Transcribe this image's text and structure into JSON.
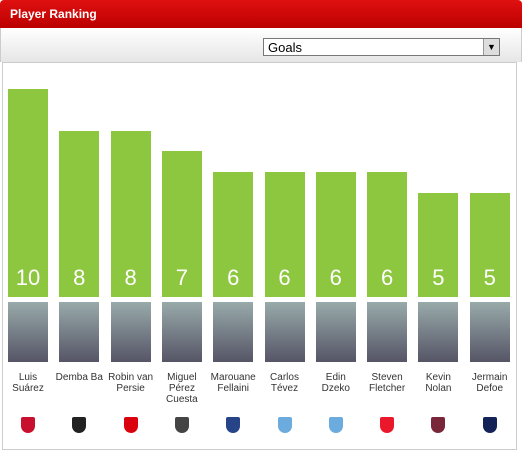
{
  "chart_data": {
    "type": "bar",
    "title": "Player Ranking",
    "selector": "Goals",
    "categories": [
      "Luis Suárez",
      "Demba Ba",
      "Robin van Persie",
      "Miguel Pérez Cuesta",
      "Marouane Fellaini",
      "Carlos Tévez",
      "Edin Dzeko",
      "Steven Fletcher",
      "Kevin Nolan",
      "Jermain Defoe"
    ],
    "values": [
      10,
      8,
      8,
      7,
      6,
      6,
      6,
      6,
      5,
      5
    ],
    "color": "#8dc63f"
  }
}
